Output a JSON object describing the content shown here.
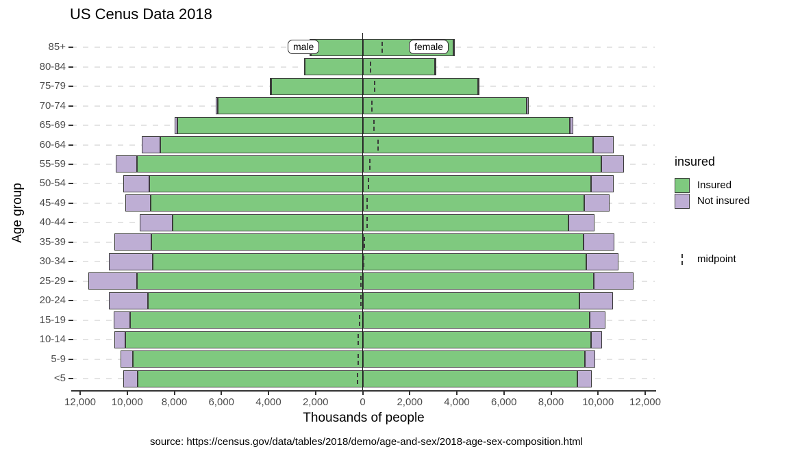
{
  "title": "US Cenus Data 2018",
  "caption": "source: https://census.gov/data/tables/2018/demo/age-and-sex/2018-age-sex-composition.html",
  "annotations": {
    "male": "male",
    "female": "female"
  },
  "legend": {
    "title": "insured",
    "items": [
      {
        "label": "Insured",
        "color": "#7fc97f"
      },
      {
        "label": "Not insured",
        "color": "#beaed4"
      }
    ],
    "midpoint_label": "midpoint"
  },
  "colors": {
    "insured": "#7fc97f",
    "not_insured": "#beaed4",
    "bar_border": "#3b3b3b",
    "axis": "#333333",
    "zero_line": "#1a1a1a",
    "tick_text": "#4d4d4d",
    "gridline": "#e4e4e4",
    "midpoint": "#3a3a3a"
  },
  "chart_data": {
    "type": "bar",
    "variant": "population-pyramid, stacked by insurance status",
    "title": "US Cenus Data 2018",
    "xlabel": "Thousands of people",
    "ylabel": "Age group",
    "unit": "thousands of people",
    "sides": {
      "left": "male",
      "right": "female"
    },
    "x_axis": {
      "tick_values": [
        -12000,
        -10000,
        -8000,
        -6000,
        -4000,
        -2000,
        0,
        2000,
        4000,
        6000,
        8000,
        10000,
        12000
      ],
      "tick_labels": [
        "12,000",
        "10,000",
        "8,000",
        "6,000",
        "4,000",
        "2,000",
        "0",
        "2,000",
        "4,000",
        "6,000",
        "8,000",
        "10,000",
        "12,000"
      ],
      "range": [
        -12400,
        12400
      ]
    },
    "grid": "horizontal dashed",
    "legend_position": "right",
    "rows": [
      {
        "age": "85+",
        "male": {
          "insured": 2210,
          "not_insured": 40
        },
        "female": {
          "insured": 3840,
          "not_insured": 40
        },
        "midpoint": 815
      },
      {
        "age": "80-84",
        "male": {
          "insured": 2450,
          "not_insured": 30
        },
        "female": {
          "insured": 3080,
          "not_insured": 40
        },
        "midpoint": 320
      },
      {
        "age": "75-79",
        "male": {
          "insured": 3870,
          "not_insured": 60
        },
        "female": {
          "insured": 4890,
          "not_insured": 60
        },
        "midpoint": 510
      },
      {
        "age": "70-74",
        "male": {
          "insured": 6140,
          "not_insured": 100
        },
        "female": {
          "insured": 6970,
          "not_insured": 80
        },
        "midpoint": 405
      },
      {
        "age": "65-69",
        "male": {
          "insured": 7860,
          "not_insured": 140
        },
        "female": {
          "insured": 8810,
          "not_insured": 130
        },
        "midpoint": 470
      },
      {
        "age": "60-64",
        "male": {
          "insured": 8610,
          "not_insured": 780
        },
        "female": {
          "insured": 9790,
          "not_insured": 880
        },
        "midpoint": 640
      },
      {
        "age": "55-59",
        "male": {
          "insured": 9580,
          "not_insured": 900
        },
        "female": {
          "insured": 10150,
          "not_insured": 950
        },
        "midpoint": 310
      },
      {
        "age": "50-54",
        "male": {
          "insured": 9060,
          "not_insured": 1100
        },
        "female": {
          "insured": 9690,
          "not_insured": 970
        },
        "midpoint": 250
      },
      {
        "age": "45-49",
        "male": {
          "insured": 9010,
          "not_insured": 1080
        },
        "female": {
          "insured": 9420,
          "not_insured": 1070
        },
        "midpoint": 200
      },
      {
        "age": "40-44",
        "male": {
          "insured": 8080,
          "not_insured": 1390
        },
        "female": {
          "insured": 8740,
          "not_insured": 1120
        },
        "midpoint": 195
      },
      {
        "age": "35-39",
        "male": {
          "insured": 8970,
          "not_insured": 1570
        },
        "female": {
          "insured": 9380,
          "not_insured": 1310
        },
        "midpoint": 75
      },
      {
        "age": "30-34",
        "male": {
          "insured": 8930,
          "not_insured": 1850
        },
        "female": {
          "insured": 9490,
          "not_insured": 1370
        },
        "midpoint": 40
      },
      {
        "age": "25-29",
        "male": {
          "insured": 9580,
          "not_insured": 2070
        },
        "female": {
          "insured": 9810,
          "not_insured": 1700
        },
        "midpoint": -70
      },
      {
        "age": "20-24",
        "male": {
          "insured": 9110,
          "not_insured": 1660
        },
        "female": {
          "insured": 9210,
          "not_insured": 1410
        },
        "midpoint": -75
      },
      {
        "age": "15-19",
        "male": {
          "insured": 9870,
          "not_insured": 710
        },
        "female": {
          "insured": 9640,
          "not_insured": 660
        },
        "midpoint": -140
      },
      {
        "age": "10-14",
        "male": {
          "insured": 10080,
          "not_insured": 480
        },
        "female": {
          "insured": 9710,
          "not_insured": 470
        },
        "midpoint": -190
      },
      {
        "age": "5-9",
        "male": {
          "insured": 9760,
          "not_insured": 520
        },
        "female": {
          "insured": 9450,
          "not_insured": 440
        },
        "midpoint": -195
      },
      {
        "age": "<5",
        "male": {
          "insured": 9570,
          "not_insured": 600
        },
        "female": {
          "insured": 9110,
          "not_insured": 630
        },
        "midpoint": -215
      }
    ]
  }
}
